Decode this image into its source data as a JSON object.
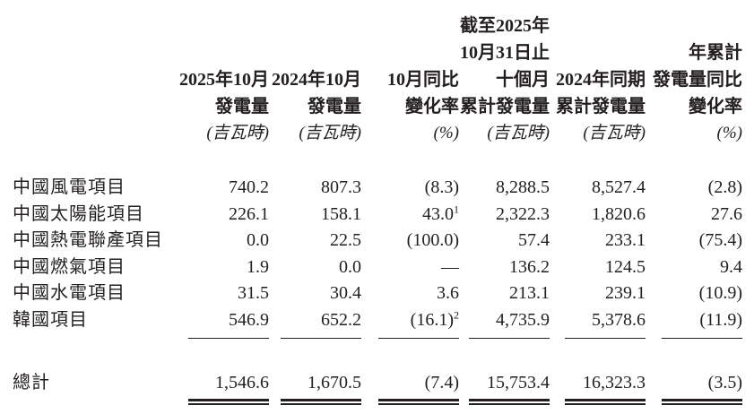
{
  "page": {
    "background_color": "#ffffff",
    "text_color": "#231f20"
  },
  "table": {
    "columns": [
      {
        "id": "oct-2025-generation",
        "lines": [
          "2025年10月",
          "發電量"
        ],
        "unit": "(吉瓦時)"
      },
      {
        "id": "oct-2024-generation",
        "lines": [
          "2024年10月",
          "發電量"
        ],
        "unit": "(吉瓦時)"
      },
      {
        "id": "oct-yoy-change",
        "lines": [
          "10月同比",
          "變化率"
        ],
        "unit": "(%)"
      },
      {
        "id": "ten-months-2025-cumulative",
        "lines": [
          "截至2025年",
          "10月31日止",
          "十個月",
          "累計發電量"
        ],
        "unit": "(吉瓦時)"
      },
      {
        "id": "same-period-2024-cumulative",
        "lines": [
          "2024年同期",
          "累計發電量"
        ],
        "unit": "(吉瓦時)"
      },
      {
        "id": "ytd-generation-yoy-change",
        "lines": [
          "年累計",
          "發電量同比",
          "變化率"
        ],
        "unit": "(%)"
      }
    ],
    "rows": [
      {
        "label": "中國風電項目",
        "values": [
          "740.2",
          "807.3",
          "(8.3)",
          "8,288.5",
          "8,527.4",
          "(2.8)"
        ]
      },
      {
        "label": "中國太陽能項目",
        "values": [
          "226.1",
          "158.1",
          "43.0",
          "2,322.3",
          "1,820.6",
          "27.6"
        ],
        "footnote_ref": "1"
      },
      {
        "label": "中國熱電聯產項目",
        "values": [
          "0.0",
          "22.5",
          "(100.0)",
          "57.4",
          "233.1",
          "(75.4)"
        ]
      },
      {
        "label": "中國燃氣項目",
        "values": [
          "1.9",
          "0.0",
          "—",
          "136.2",
          "124.5",
          "9.4"
        ]
      },
      {
        "label": "中國水電項目",
        "values": [
          "31.5",
          "30.4",
          "3.6",
          "213.1",
          "239.1",
          "(10.9)"
        ]
      },
      {
        "label": "韓國項目",
        "values": [
          "546.9",
          "652.2",
          "(16.1)",
          "4,735.9",
          "5,378.6",
          "(11.9)"
        ],
        "footnote_ref": "2"
      }
    ],
    "total_row": {
      "label": "總計",
      "values": [
        "1,546.6",
        "1,670.5",
        "(7.4)",
        "15,753.4",
        "16,323.3",
        "(3.5)"
      ]
    }
  }
}
